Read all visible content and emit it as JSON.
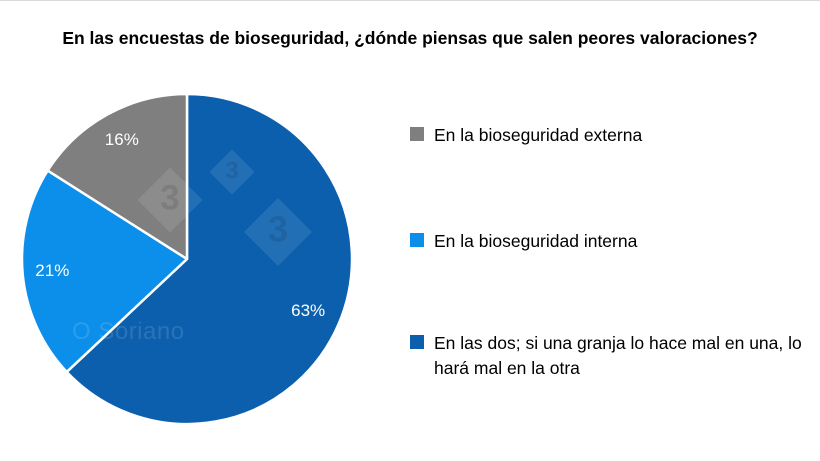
{
  "chart_data": {
    "type": "pie",
    "title": "En las encuestas de bioseguridad, ¿dónde piensas que salen peores valoraciones?",
    "slices": [
      {
        "label": "En las dos; si una granja lo hace mal en una, lo hará mal en la otra",
        "value": 63,
        "display": "63%",
        "color": "#0b5fad"
      },
      {
        "label": "En la bioseguridad interna",
        "value": 21,
        "display": "21%",
        "color": "#0c8fea"
      },
      {
        "label": "En la bioseguridad externa",
        "value": 16,
        "display": "16%",
        "color": "#7f7f7f"
      }
    ],
    "legend_placement": "right"
  },
  "legend": {
    "items": [
      {
        "label": "En la bioseguridad externa",
        "color": "#7f7f7f"
      },
      {
        "label": "En la bioseguridad interna",
        "color": "#0c8fea"
      },
      {
        "label": "En las dos; si una granja lo hace mal en una, lo hará mal en la otra",
        "color": "#0b5fad"
      }
    ]
  },
  "watermark": {
    "text": "O Soriano",
    "logo_glyph": "3"
  }
}
